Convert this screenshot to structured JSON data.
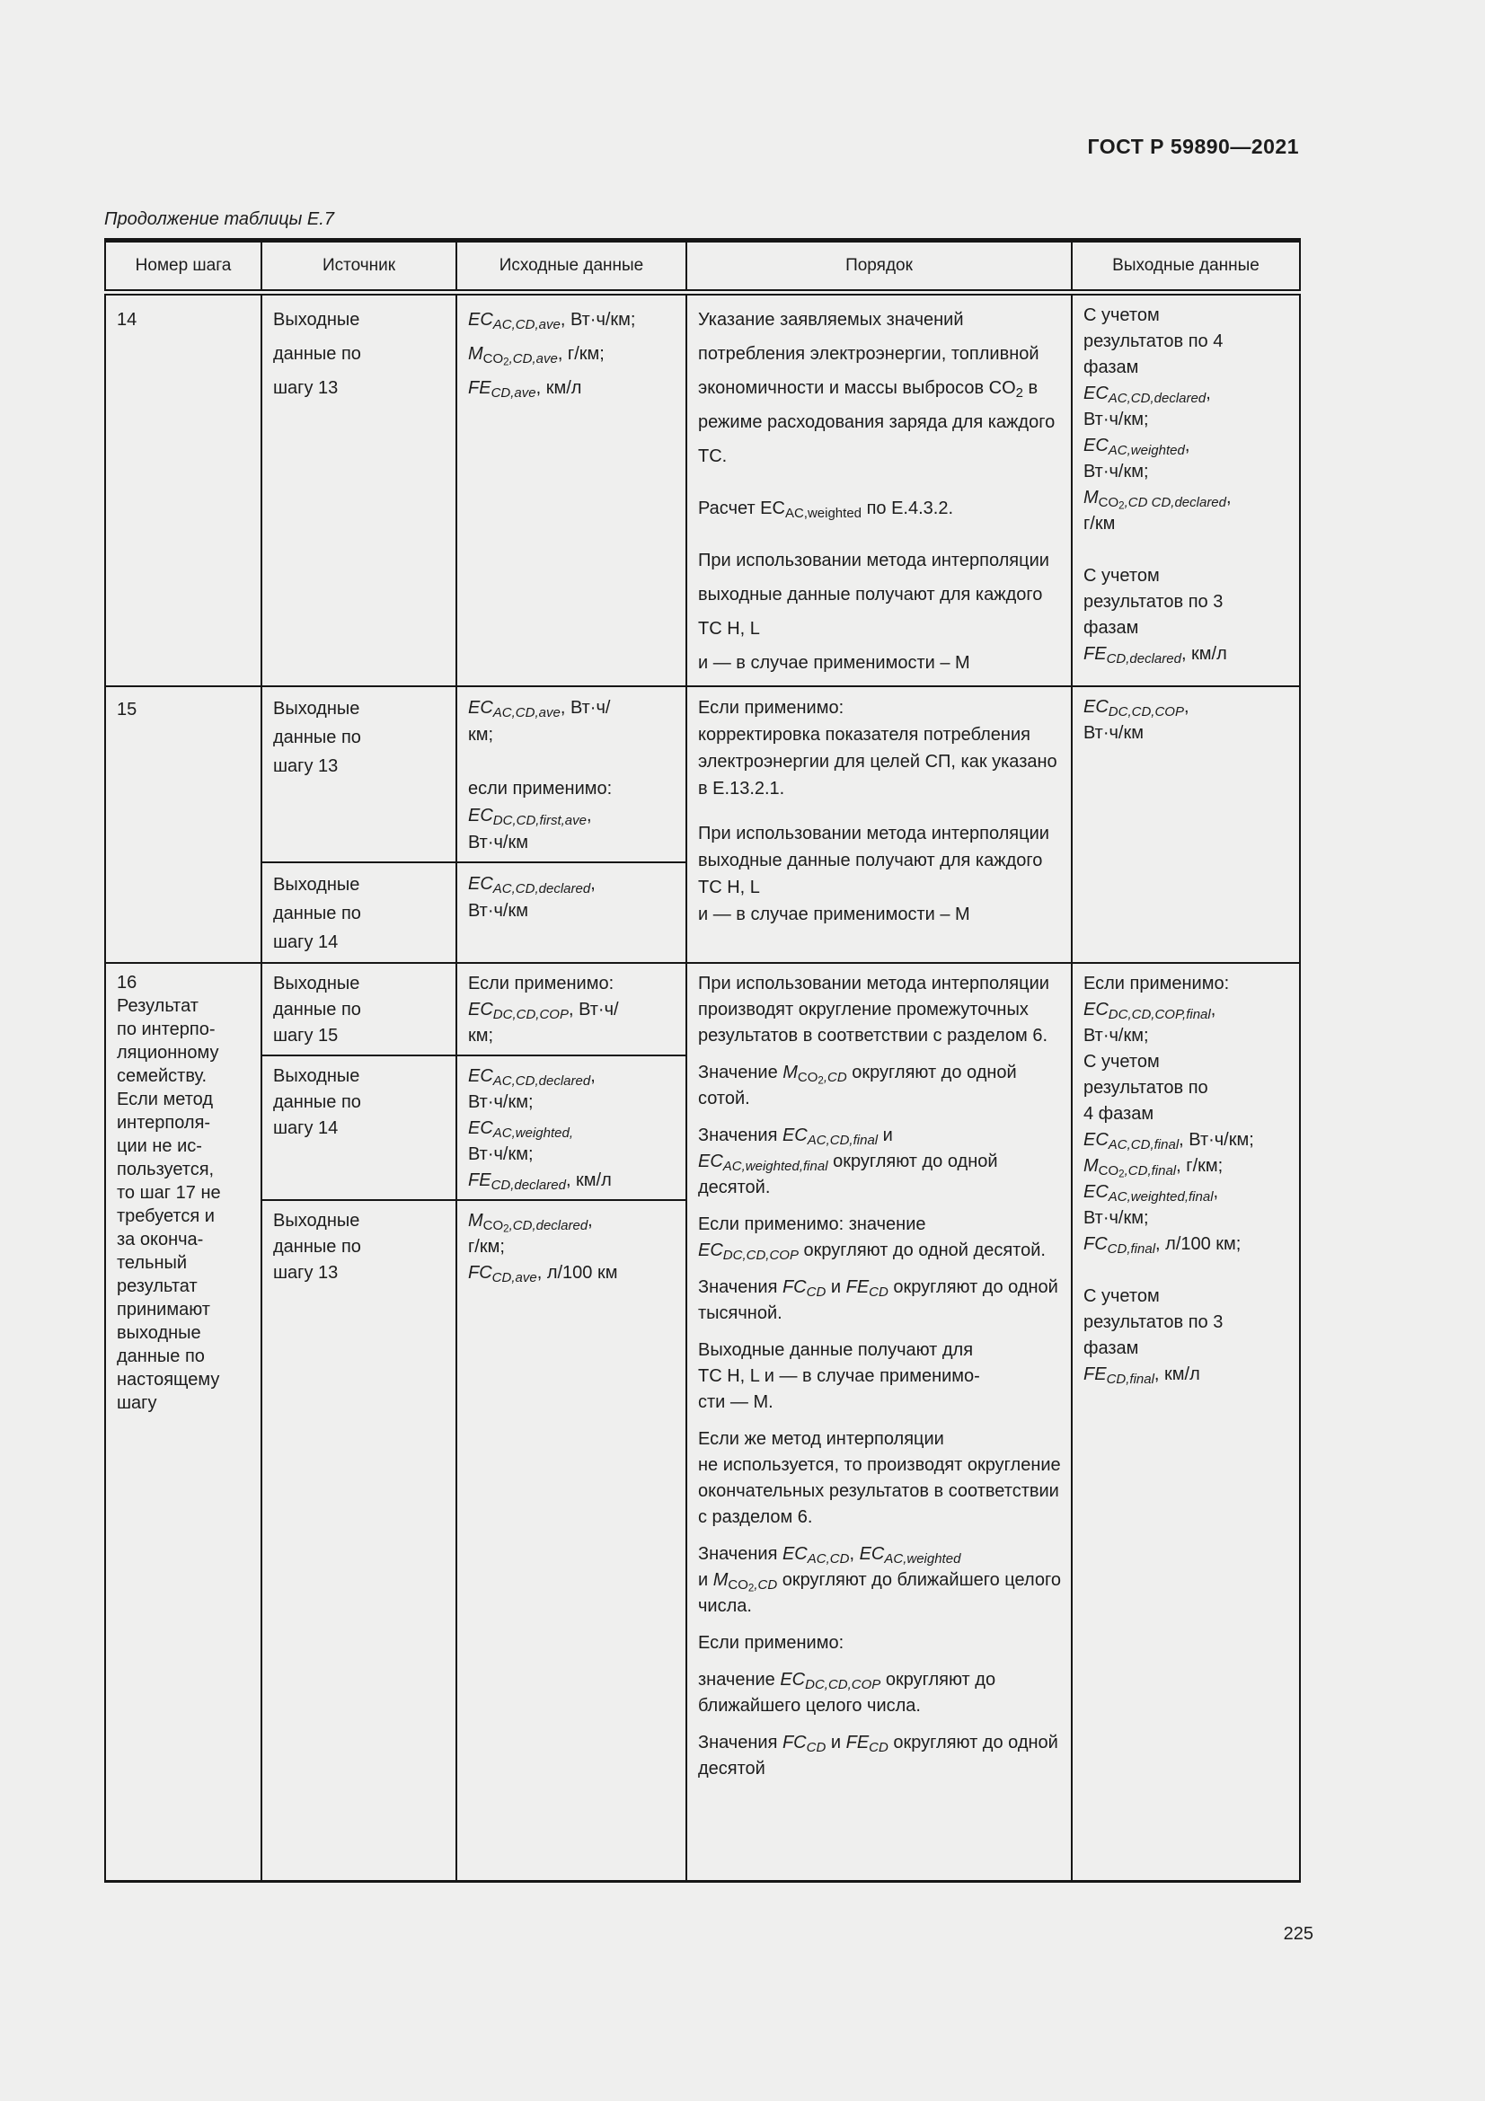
{
  "page": {
    "header_right": "ГОСТ Р 59890—2021",
    "caption": "Продолжение таблицы Е.7",
    "page_number": "225"
  },
  "table": {
    "headers": [
      "Номер шага",
      "Источник",
      "Исходные данные",
      "Порядок",
      "Выходные данные"
    ],
    "rows": {
      "r14": {
        "num": "14",
        "src": "Выходные\nданные по\nшагу 13",
        "input": [
          [
            [
              "i",
              "EC"
            ],
            [
              "s",
              "AC,CD,ave"
            ],
            [
              "t",
              ", Вт·ч/км;"
            ]
          ],
          [
            [
              "i",
              "M"
            ],
            [
              "u",
              "CO"
            ],
            [
              "d",
              "2"
            ],
            [
              "s",
              ",CD,ave"
            ],
            [
              "t",
              ", г/км;"
            ]
          ],
          [
            [
              "i",
              "FE"
            ],
            [
              "s",
              "CD,ave"
            ],
            [
              "t",
              ", км/л"
            ]
          ]
        ],
        "proc": [
          [
            [
              "t",
              "Указание заявляемых значений потребления электроэнергии, топливной экономичности и массы выбросов CO"
            ],
            [
              "u",
              "2"
            ],
            [
              "t",
              " в режиме расходования заряда для каждого ТС."
            ]
          ],
          [
            [
              "t",
              "Расчет ЕС"
            ],
            [
              "u",
              "AC,weighted"
            ],
            [
              "t",
              " по Е.4.3.2."
            ]
          ],
          [
            [
              "t",
              "При использовании метода интерполяции выходные данные получают для каждого ТС H, L\nи — в случае применимости – М"
            ]
          ]
        ],
        "out": [
          [
            [
              "t",
              "С учетом\nрезультатов по 4\nфазам"
            ]
          ],
          [
            [
              "i",
              "EC"
            ],
            [
              "s",
              "AC,CD,declared"
            ],
            [
              "t",
              ",\nВт·ч/км;"
            ]
          ],
          [
            [
              "i",
              "EC"
            ],
            [
              "s",
              "AC,weighted"
            ],
            [
              "t",
              ",\nВт·ч/км;"
            ]
          ],
          [
            [
              "i",
              "M"
            ],
            [
              "u",
              "CO"
            ],
            [
              "d",
              "2"
            ],
            [
              "s",
              ",CD CD,declared"
            ],
            [
              "t",
              ",\nг/км"
            ]
          ],
          [],
          [
            [
              "t",
              "С учетом\nрезультатов по 3\nфазам"
            ]
          ],
          [
            [
              "i",
              "FE"
            ],
            [
              "s",
              "CD,declared"
            ],
            [
              "t",
              ", км/л"
            ]
          ]
        ]
      },
      "r15": {
        "num": "15",
        "src1": "Выходные\nданные по\nшагу 13",
        "input1": [
          [
            [
              "i",
              "EC"
            ],
            [
              "s",
              "AC,CD,ave"
            ],
            [
              "t",
              ", Вт·ч/\nкм;"
            ]
          ],
          [],
          [
            [
              "t",
              "если применимо:"
            ]
          ],
          [
            [
              "i",
              "EC"
            ],
            [
              "s",
              "DC,CD,first,ave"
            ],
            [
              "t",
              ",\nВт·ч/км"
            ]
          ]
        ],
        "src2": "Выходные\nданные по\nшагу 14",
        "input2": [
          [
            [
              "i",
              "EC"
            ],
            [
              "s",
              "AC,CD,declared"
            ],
            [
              "t",
              ",\nВт·ч/км"
            ]
          ]
        ],
        "proc": [
          [
            [
              "t",
              "Если применимо:\nкорректировка показателя потребления электроэнергии для целей СП, как указано в Е.13.2.1."
            ]
          ],
          [
            [
              "t",
              "При использовании метода интерполяции выходные данные получают для каждого ТС H, L\nи — в случае применимости – М"
            ]
          ]
        ],
        "out": [
          [
            [
              "i",
              "EC"
            ],
            [
              "s",
              "DC,CD,COP"
            ],
            [
              "t",
              ",\nВт·ч/км"
            ]
          ]
        ]
      },
      "r16": {
        "num_note": "16\nРезультат\nпо интерпо-\nляционному\nсемейству.\nЕсли метод\nинтерполя-\nции не ис-\nпользуется,\nто шаг 17 не\nтребуется и\nза оконча-\nтельный\nрезультат\nпринимают\nвыходные\nданные по\nнастоящему\nшагу",
        "src1": "Выходные\nданные по\nшагу 15",
        "input1": [
          [
            [
              "t",
              "Если применимо:"
            ]
          ],
          [
            [
              "i",
              "EC"
            ],
            [
              "s",
              "DC,CD,COP"
            ],
            [
              "t",
              ", Вт·ч/\nкм;"
            ]
          ]
        ],
        "src2": "Выходные\nданные по\nшагу 14",
        "input2": [
          [
            [
              "i",
              "EC"
            ],
            [
              "s",
              "AC,CD,declared"
            ],
            [
              "t",
              ",\nВт·ч/км;"
            ]
          ],
          [
            [
              "i",
              "EC"
            ],
            [
              "s",
              "AC,weighted,"
            ],
            [
              "t",
              "\nВт·ч/км;"
            ]
          ],
          [
            [
              "i",
              "FE"
            ],
            [
              "s",
              "CD,declared"
            ],
            [
              "t",
              ", км/л"
            ]
          ]
        ],
        "src3": "Выходные\nданные по\nшагу 13",
        "input3": [
          [
            [
              "i",
              "M"
            ],
            [
              "u",
              "CO"
            ],
            [
              "d",
              "2"
            ],
            [
              "s",
              ",CD,declared"
            ],
            [
              "t",
              ",\nг/км;"
            ]
          ],
          [
            [
              "i",
              "FC"
            ],
            [
              "s",
              "CD,ave"
            ],
            [
              "t",
              ", л/100 км"
            ]
          ]
        ],
        "proc": [
          [
            [
              "t",
              "При использовании метода интерполяции производят округление промежуточных результатов в соответствии с разделом 6."
            ]
          ],
          [
            [
              "t",
              "Значение "
            ],
            [
              "i",
              "M"
            ],
            [
              "u",
              "CO"
            ],
            [
              "d",
              "2"
            ],
            [
              "s",
              ",CD"
            ],
            [
              "t",
              " округляют до одной сотой."
            ]
          ],
          [
            [
              "t",
              "Значения "
            ],
            [
              "i",
              "EC"
            ],
            [
              "s",
              "AC,CD,final"
            ],
            [
              "t",
              " и\n"
            ],
            [
              "i",
              "EC"
            ],
            [
              "s",
              "AC,weighted,final"
            ],
            [
              "t",
              " округляют до одной десятой."
            ]
          ],
          [
            [
              "t",
              "Если применимо: значение\n"
            ],
            [
              "i",
              "EC"
            ],
            [
              "s",
              "DC,CD,COP"
            ],
            [
              "t",
              " округляют до одной десятой."
            ]
          ],
          [
            [
              "t",
              "Значения "
            ],
            [
              "i",
              "FC"
            ],
            [
              "s",
              "CD"
            ],
            [
              "t",
              " и "
            ],
            [
              "i",
              "FE"
            ],
            [
              "s",
              "CD"
            ],
            [
              "t",
              " округляют до одной тысячной."
            ]
          ],
          [
            [
              "t",
              "Выходные данные получают для\nТС H, L и — в случае применимо-\nсти — М."
            ]
          ],
          [
            [
              "t",
              "Если же метод интерполяции\nне используется, то производят округление окончательных результатов в соответствии с разделом 6."
            ]
          ],
          [
            [
              "t",
              "Значения "
            ],
            [
              "i",
              "EC"
            ],
            [
              "s",
              "AC,CD"
            ],
            [
              "t",
              ", "
            ],
            [
              "i",
              "EC"
            ],
            [
              "s",
              "AC,weighted"
            ],
            [
              "t",
              "\nи "
            ],
            [
              "i",
              "M"
            ],
            [
              "u",
              "CO"
            ],
            [
              "d",
              "2"
            ],
            [
              "s",
              ",CD"
            ],
            [
              "t",
              " округляют до ближайшего целого числа."
            ]
          ],
          [
            [
              "t",
              "Если применимо:"
            ]
          ],
          [
            [
              "t",
              "значение "
            ],
            [
              "i",
              "EC"
            ],
            [
              "s",
              "DC,CD,COP"
            ],
            [
              "t",
              " округляют до ближайшего целого числа."
            ]
          ],
          [
            [
              "t",
              "Значения "
            ],
            [
              "i",
              "FC"
            ],
            [
              "s",
              "CD"
            ],
            [
              "t",
              " и "
            ],
            [
              "i",
              "FE"
            ],
            [
              "s",
              "CD"
            ],
            [
              "t",
              " округляют до одной десятой"
            ]
          ]
        ],
        "out": [
          [
            [
              "t",
              "Если применимо:"
            ]
          ],
          [
            [
              "i",
              "EC"
            ],
            [
              "s",
              "DC,CD,COP,final"
            ],
            [
              "t",
              ",\nВт·ч/км;"
            ]
          ],
          [
            [
              "t",
              "С учетом\nрезультатов по\n4 фазам"
            ]
          ],
          [
            [
              "i",
              "EC"
            ],
            [
              "s",
              "AC,CD,final"
            ],
            [
              "t",
              ", Вт·ч/км;"
            ]
          ],
          [
            [
              "i",
              "M"
            ],
            [
              "u",
              "CO"
            ],
            [
              "d",
              "2"
            ],
            [
              "s",
              ",CD,final"
            ],
            [
              "t",
              ", г/км;"
            ]
          ],
          [
            [
              "i",
              "EC"
            ],
            [
              "s",
              "AC,weighted,final"
            ],
            [
              "t",
              ",\nВт·ч/км;"
            ]
          ],
          [
            [
              "i",
              "FC"
            ],
            [
              "s",
              "CD,final"
            ],
            [
              "t",
              ", л/100 км;"
            ]
          ],
          [],
          [
            [
              "t",
              "С учетом\nрезультатов по 3\nфазам"
            ]
          ],
          [
            [
              "i",
              "FE"
            ],
            [
              "s",
              "CD,final"
            ],
            [
              "t",
              ", км/л"
            ]
          ]
        ]
      }
    }
  }
}
